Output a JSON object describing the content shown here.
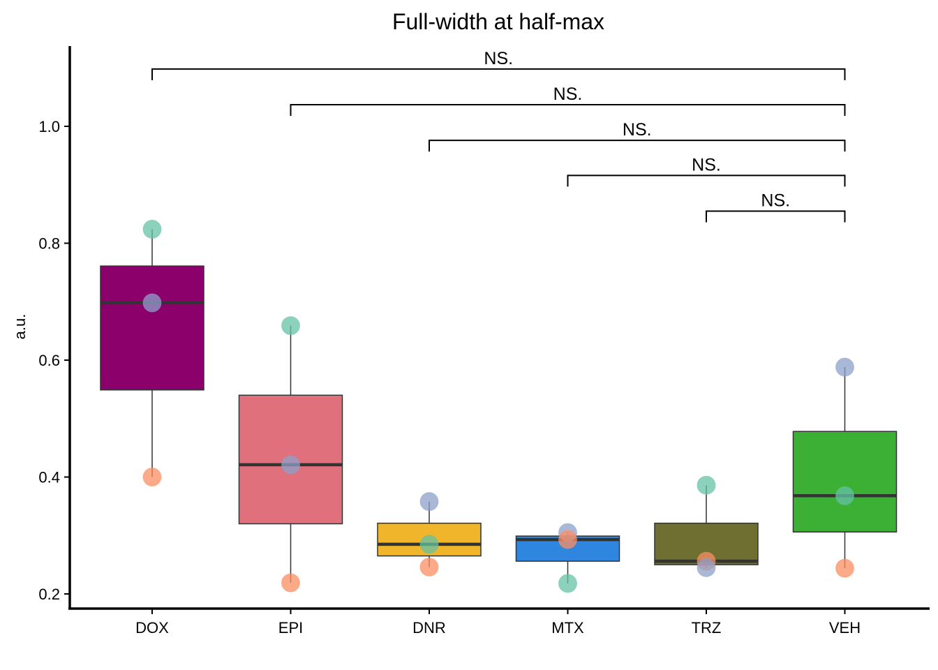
{
  "chart_data": {
    "type": "box",
    "title": "Full-width at half-max",
    "xlabel": "",
    "ylabel": "a.u.",
    "ylim": [
      0.18,
      1.14
    ],
    "yticks": [
      0.2,
      0.4,
      0.6,
      0.8,
      1.0
    ],
    "ytick_labels": [
      "0.2",
      "0.4",
      "0.6",
      "0.8",
      "1.0"
    ],
    "grid": false,
    "categories": [
      "DOX",
      "EPI",
      "DNR",
      "MTX",
      "TRZ",
      "VEH"
    ],
    "boxes": [
      {
        "category": "DOX",
        "fill": "#8B006B",
        "min": 0.4,
        "q1": 0.549,
        "median": 0.698,
        "q3": 0.761,
        "max": 0.824
      },
      {
        "category": "EPI",
        "fill": "#E0707C",
        "min": 0.219,
        "q1": 0.32,
        "median": 0.421,
        "q3": 0.54,
        "max": 0.659
      },
      {
        "category": "DNR",
        "fill": "#F0B52A",
        "min": 0.246,
        "q1": 0.265,
        "median": 0.285,
        "q3": 0.321,
        "max": 0.358
      },
      {
        "category": "MTX",
        "fill": "#2E86DE",
        "min": 0.218,
        "q1": 0.256,
        "median": 0.293,
        "q3": 0.299,
        "max": 0.305
      },
      {
        "category": "TRZ",
        "fill": "#6E6F30",
        "min": 0.245,
        "q1": 0.25,
        "median": 0.256,
        "q3": 0.321,
        "max": 0.386
      },
      {
        "category": "VEH",
        "fill": "#3BB034",
        "min": 0.244,
        "q1": 0.306,
        "median": 0.368,
        "q3": 0.478,
        "max": 0.588
      }
    ],
    "points": [
      {
        "category": "DOX",
        "y": 0.824,
        "color": "#66C2A5"
      },
      {
        "category": "DOX",
        "y": 0.698,
        "color": "#8DA0CB"
      },
      {
        "category": "DOX",
        "y": 0.4,
        "color": "#FC8D62"
      },
      {
        "category": "EPI",
        "y": 0.659,
        "color": "#66C2A5"
      },
      {
        "category": "EPI",
        "y": 0.421,
        "color": "#8DA0CB"
      },
      {
        "category": "EPI",
        "y": 0.219,
        "color": "#FC8D62"
      },
      {
        "category": "DNR",
        "y": 0.358,
        "color": "#8DA0CB"
      },
      {
        "category": "DNR",
        "y": 0.285,
        "color": "#66C2A5"
      },
      {
        "category": "DNR",
        "y": 0.246,
        "color": "#FC8D62"
      },
      {
        "category": "MTX",
        "y": 0.305,
        "color": "#8DA0CB"
      },
      {
        "category": "MTX",
        "y": 0.293,
        "color": "#FC8D62"
      },
      {
        "category": "MTX",
        "y": 0.218,
        "color": "#66C2A5"
      },
      {
        "category": "TRZ",
        "y": 0.386,
        "color": "#66C2A5"
      },
      {
        "category": "TRZ",
        "y": 0.256,
        "color": "#FC8D62"
      },
      {
        "category": "TRZ",
        "y": 0.245,
        "color": "#8DA0CB"
      },
      {
        "category": "VEH",
        "y": 0.588,
        "color": "#8DA0CB"
      },
      {
        "category": "VEH",
        "y": 0.368,
        "color": "#66C2A5"
      },
      {
        "category": "VEH",
        "y": 0.244,
        "color": "#FC8D62"
      }
    ],
    "comparisons": [
      {
        "group1": "DOX",
        "group2": "VEH",
        "label": "NS.",
        "y": 1.098
      },
      {
        "group1": "EPI",
        "group2": "VEH",
        "label": "NS.",
        "y": 1.037
      },
      {
        "group1": "DNR",
        "group2": "VEH",
        "label": "NS.",
        "y": 0.976
      },
      {
        "group1": "MTX",
        "group2": "VEH",
        "label": "NS.",
        "y": 0.916
      },
      {
        "group1": "TRZ",
        "group2": "VEH",
        "label": "NS.",
        "y": 0.855
      }
    ]
  }
}
